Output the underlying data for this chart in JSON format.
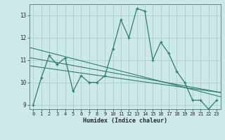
{
  "x": [
    0,
    1,
    2,
    3,
    4,
    5,
    6,
    7,
    8,
    9,
    10,
    11,
    12,
    13,
    14,
    15,
    16,
    17,
    18,
    19,
    20,
    21,
    22,
    23
  ],
  "y_main": [
    9.0,
    10.2,
    11.2,
    10.8,
    11.1,
    9.6,
    10.3,
    10.0,
    10.0,
    10.3,
    11.5,
    12.8,
    12.0,
    13.3,
    13.2,
    11.0,
    11.8,
    11.3,
    10.5,
    10.0,
    9.2,
    9.2,
    8.8,
    9.2
  ],
  "line_color": "#2e7d6e",
  "bg_color": "#cce8e8",
  "grid_color": "#aacfcf",
  "xlabel": "Humidex (Indice chaleur)",
  "yticks": [
    9,
    10,
    11,
    12,
    13
  ],
  "xticks": [
    0,
    1,
    2,
    3,
    4,
    5,
    6,
    7,
    8,
    9,
    10,
    11,
    12,
    13,
    14,
    15,
    16,
    17,
    18,
    19,
    20,
    21,
    22,
    23
  ],
  "xlim_min": -0.5,
  "xlim_max": 23.5,
  "ylim_min": 8.8,
  "ylim_max": 13.5,
  "trend_lines": [
    {
      "slope": -0.092,
      "intercept": 11.52
    },
    {
      "slope": -0.065,
      "intercept": 11.08
    },
    {
      "slope": -0.05,
      "intercept": 10.72
    }
  ]
}
